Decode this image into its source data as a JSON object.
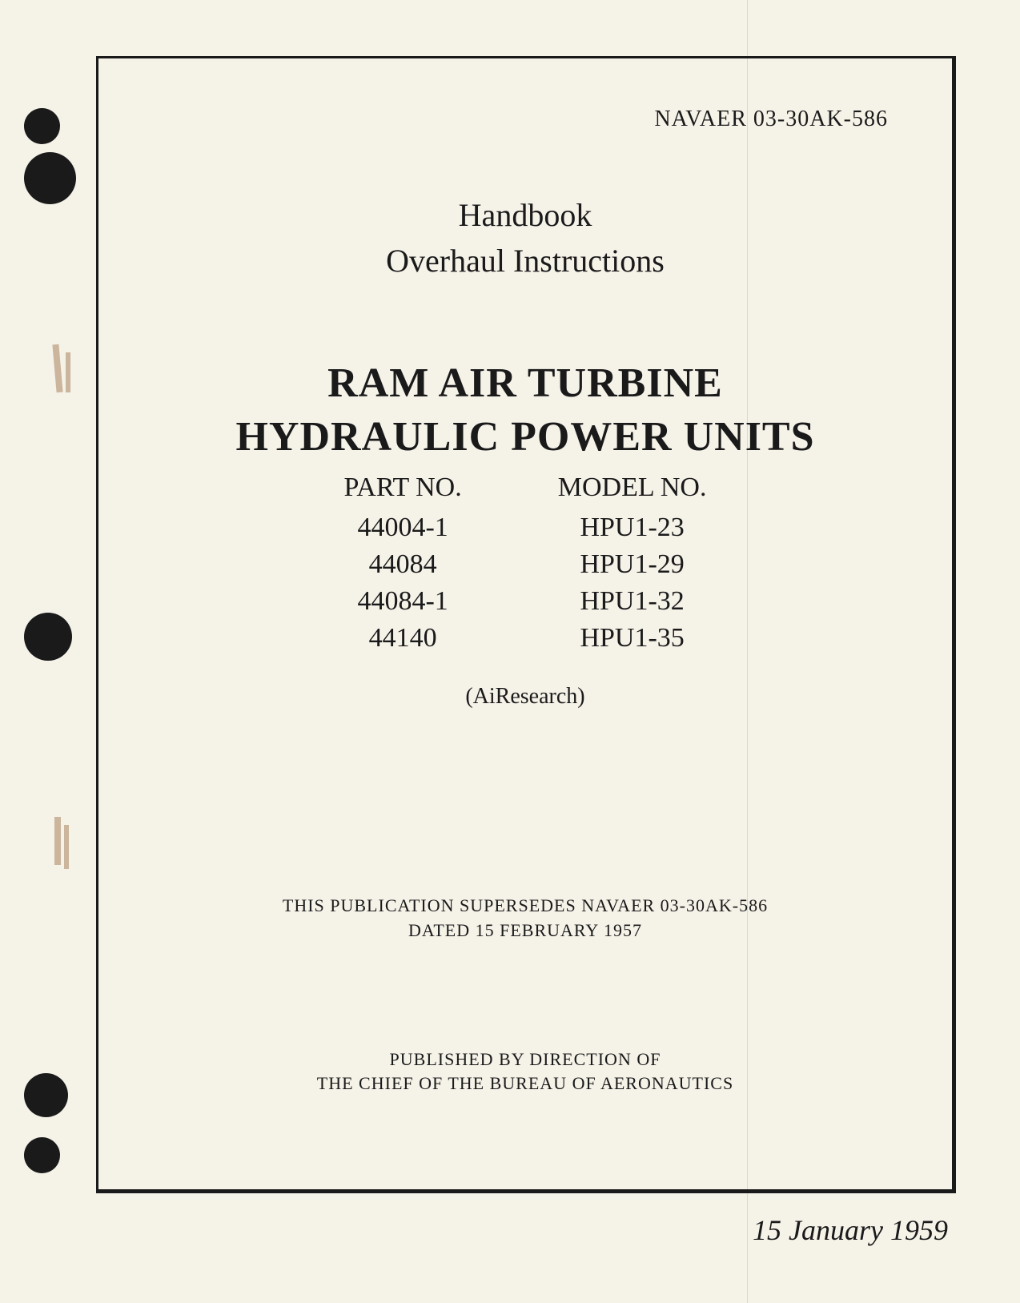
{
  "document": {
    "docNumber": "NAVAER 03-30AK-586",
    "handbookLabel": "Handbook",
    "subtitle": "Overhaul Instructions",
    "titleLine1": "RAM AIR TURBINE",
    "titleLine2": "HYDRAULIC POWER UNITS",
    "partNoHeader": "PART NO.",
    "modelNoHeader": "MODEL NO.",
    "partNumbers": [
      "44004-1",
      "44084",
      "44084-1",
      "44140"
    ],
    "modelNumbers": [
      "HPU1-23",
      "HPU1-29",
      "HPU1-32",
      "HPU1-35"
    ],
    "manufacturer": "(AiResearch)",
    "supersedesLine1": "THIS PUBLICATION SUPERSEDES NAVAER 03-30AK-586",
    "supersedesLine2": "DATED 15 FEBRUARY 1957",
    "publisherLine1": "PUBLISHED BY DIRECTION OF",
    "publisherLine2": "THE CHIEF OF THE BUREAU OF AERONAUTICS",
    "date": "15 January 1959"
  },
  "styling": {
    "pageBackground": "#f5f2e8",
    "textColor": "#1a1a1a",
    "borderColor": "#1a1a1a",
    "holeColor": "#1a1a1a",
    "stainColor": "rgba(139, 90, 43, 0.4)",
    "pinkLineColor": "rgba(255, 100, 150, 0.3)",
    "pageWidth": 1274,
    "pageHeight": 1627,
    "fontFamily": "Times New Roman",
    "docNumberFontSize": 28,
    "handbookFontSize": 40,
    "mainTitleFontSize": 52,
    "columnHeaderFontSize": 34,
    "columnItemFontSize": 34,
    "manufacturerFontSize": 28,
    "supersedesFontSize": 22,
    "publisherFontSize": 22,
    "dateFontSize": 36
  }
}
